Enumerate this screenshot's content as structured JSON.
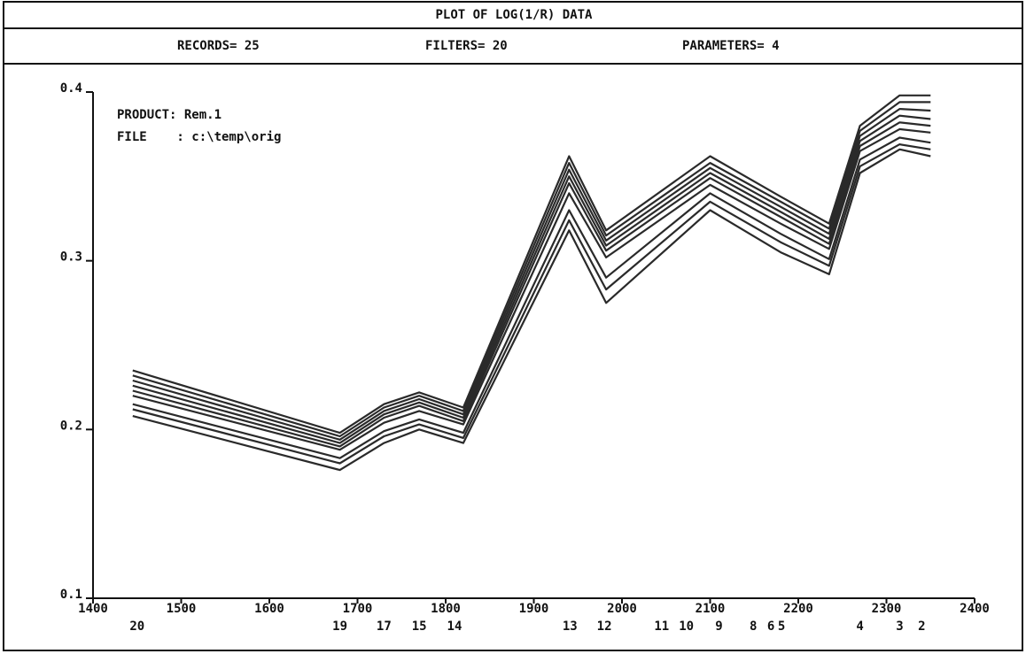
{
  "chart_data": {
    "type": "line",
    "title": "PLOT OF LOG(1/R) DATA",
    "header": [
      "RECORDS= 25",
      "FILTERS= 20",
      "PARAMETERS= 4"
    ],
    "annotations": [
      "PRODUCT: Rem.1",
      "FILE    : c:\\temp\\orig"
    ],
    "x": [
      1445,
      1680,
      1730,
      1770,
      1820,
      1940,
      1982,
      2100,
      2180,
      2235,
      2270,
      2315,
      2350
    ],
    "xlim": [
      1400,
      2400
    ],
    "xticks": [
      1400,
      1500,
      1600,
      1700,
      1800,
      1900,
      2000,
      2100,
      2200,
      2300,
      2400
    ],
    "ylim": [
      0.1,
      0.4
    ],
    "yticks": [
      0.1,
      0.2,
      0.3,
      0.4
    ],
    "filter_labels": [
      {
        "value": 1450,
        "label": "20"
      },
      {
        "value": 1680,
        "label": "19"
      },
      {
        "value": 1730,
        "label": "17"
      },
      {
        "value": 1770,
        "label": "15"
      },
      {
        "value": 1810,
        "label": "14"
      },
      {
        "value": 1941,
        "label": "13"
      },
      {
        "value": 1980,
        "label": "12"
      },
      {
        "value": 2045,
        "label": "11"
      },
      {
        "value": 2073,
        "label": "10"
      },
      {
        "value": 2110,
        "label": "9"
      },
      {
        "value": 2149,
        "label": "8"
      },
      {
        "value": 2169,
        "label": "6"
      },
      {
        "value": 2181,
        "label": "5"
      },
      {
        "value": 2270,
        "label": "4"
      },
      {
        "value": 2315,
        "label": "3"
      },
      {
        "value": 2340,
        "label": "2"
      }
    ],
    "color": "#2a2a2a",
    "series": [
      {
        "values": [
          0.235,
          0.198,
          0.215,
          0.222,
          0.213,
          0.362,
          0.318,
          0.362,
          0.338,
          0.322,
          0.38,
          0.398,
          0.398
        ]
      },
      {
        "values": [
          0.232,
          0.196,
          0.213,
          0.22,
          0.211,
          0.358,
          0.315,
          0.358,
          0.335,
          0.319,
          0.377,
          0.394,
          0.394
        ]
      },
      {
        "values": [
          0.229,
          0.194,
          0.211,
          0.218,
          0.209,
          0.354,
          0.312,
          0.355,
          0.332,
          0.316,
          0.374,
          0.39,
          0.389
        ]
      },
      {
        "values": [
          0.226,
          0.192,
          0.209,
          0.216,
          0.207,
          0.35,
          0.309,
          0.352,
          0.329,
          0.313,
          0.371,
          0.386,
          0.384
        ]
      },
      {
        "values": [
          0.223,
          0.19,
          0.207,
          0.214,
          0.205,
          0.346,
          0.306,
          0.349,
          0.326,
          0.31,
          0.368,
          0.382,
          0.38
        ]
      },
      {
        "values": [
          0.22,
          0.188,
          0.204,
          0.211,
          0.203,
          0.34,
          0.302,
          0.345,
          0.322,
          0.307,
          0.365,
          0.378,
          0.376
        ]
      },
      {
        "values": [
          0.215,
          0.183,
          0.199,
          0.206,
          0.198,
          0.33,
          0.29,
          0.34,
          0.316,
          0.301,
          0.36,
          0.373,
          0.37
        ]
      },
      {
        "values": [
          0.212,
          0.18,
          0.196,
          0.203,
          0.195,
          0.324,
          0.283,
          0.335,
          0.311,
          0.297,
          0.356,
          0.369,
          0.366
        ]
      },
      {
        "values": [
          0.208,
          0.176,
          0.192,
          0.2,
          0.192,
          0.318,
          0.275,
          0.33,
          0.305,
          0.292,
          0.352,
          0.366,
          0.362
        ]
      }
    ]
  }
}
